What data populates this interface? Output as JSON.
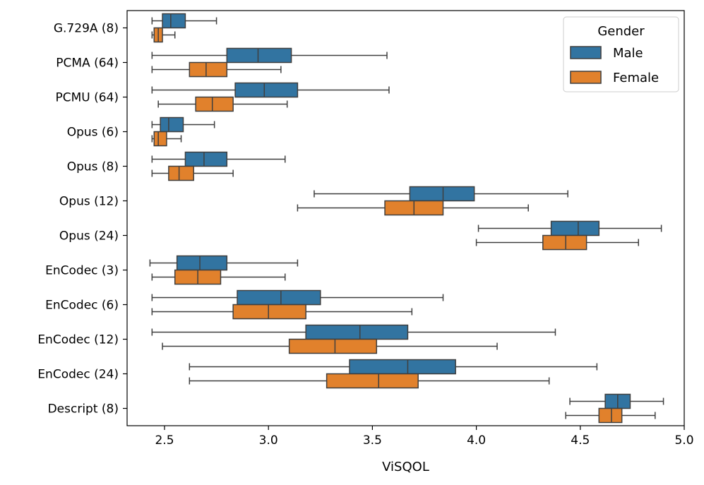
{
  "chart_data": {
    "type": "boxplot",
    "orientation": "horizontal",
    "title": "",
    "xlabel": "ViSQOL",
    "ylabel": "",
    "xlim": [
      2.32,
      5.0
    ],
    "xticks": [
      "2.5",
      "3.0",
      "3.5",
      "4.0",
      "4.5",
      "5.0"
    ],
    "categories": [
      "G.729A (8)",
      "PCMA (64)",
      "PCMU (64)",
      "Opus (6)",
      "Opus (8)",
      "Opus (12)",
      "Opus (24)",
      "EnCodec (3)",
      "EnCodec (6)",
      "EnCodec (12)",
      "EnCodec (24)",
      "Descript (8)"
    ],
    "legend": {
      "title": "Gender",
      "position": "top-right"
    },
    "series": [
      {
        "name": "Male",
        "color": "#3274a1",
        "boxes": [
          {
            "min": 2.44,
            "q1": 2.49,
            "median": 2.53,
            "q3": 2.6,
            "max": 2.75
          },
          {
            "min": 2.44,
            "q1": 2.8,
            "median": 2.95,
            "q3": 3.11,
            "max": 3.57
          },
          {
            "min": 2.44,
            "q1": 2.84,
            "median": 2.98,
            "q3": 3.14,
            "max": 3.58
          },
          {
            "min": 2.44,
            "q1": 2.48,
            "median": 2.52,
            "q3": 2.59,
            "max": 2.74
          },
          {
            "min": 2.44,
            "q1": 2.6,
            "median": 2.69,
            "q3": 2.8,
            "max": 3.08
          },
          {
            "min": 3.22,
            "q1": 3.68,
            "median": 3.84,
            "q3": 3.99,
            "max": 4.44
          },
          {
            "min": 4.01,
            "q1": 4.36,
            "median": 4.49,
            "q3": 4.59,
            "max": 4.89
          },
          {
            "min": 2.43,
            "q1": 2.56,
            "median": 2.67,
            "q3": 2.8,
            "max": 3.14
          },
          {
            "min": 2.44,
            "q1": 2.85,
            "median": 3.06,
            "q3": 3.25,
            "max": 3.84
          },
          {
            "min": 2.44,
            "q1": 3.18,
            "median": 3.44,
            "q3": 3.67,
            "max": 4.38
          },
          {
            "min": 2.62,
            "q1": 3.39,
            "median": 3.67,
            "q3": 3.9,
            "max": 4.58
          },
          {
            "min": 4.45,
            "q1": 4.62,
            "median": 4.68,
            "q3": 4.74,
            "max": 4.9
          }
        ]
      },
      {
        "name": "Female",
        "color": "#e1812c",
        "boxes": [
          {
            "min": 2.44,
            "q1": 2.45,
            "median": 2.47,
            "q3": 2.49,
            "max": 2.55
          },
          {
            "min": 2.44,
            "q1": 2.62,
            "median": 2.7,
            "q3": 2.8,
            "max": 3.06
          },
          {
            "min": 2.47,
            "q1": 2.65,
            "median": 2.73,
            "q3": 2.83,
            "max": 3.09
          },
          {
            "min": 2.44,
            "q1": 2.45,
            "median": 2.47,
            "q3": 2.51,
            "max": 2.58
          },
          {
            "min": 2.44,
            "q1": 2.52,
            "median": 2.57,
            "q3": 2.64,
            "max": 2.83
          },
          {
            "min": 3.14,
            "q1": 3.56,
            "median": 3.7,
            "q3": 3.84,
            "max": 4.25
          },
          {
            "min": 4.0,
            "q1": 4.32,
            "median": 4.43,
            "q3": 4.53,
            "max": 4.78
          },
          {
            "min": 2.44,
            "q1": 2.55,
            "median": 2.66,
            "q3": 2.77,
            "max": 3.08
          },
          {
            "min": 2.44,
            "q1": 2.83,
            "median": 3.0,
            "q3": 3.18,
            "max": 3.69
          },
          {
            "min": 2.49,
            "q1": 3.1,
            "median": 3.32,
            "q3": 3.52,
            "max": 4.1
          },
          {
            "min": 2.62,
            "q1": 3.28,
            "median": 3.53,
            "q3": 3.72,
            "max": 4.35
          },
          {
            "min": 4.43,
            "q1": 4.59,
            "median": 4.65,
            "q3": 4.7,
            "max": 4.86
          }
        ]
      }
    ]
  }
}
